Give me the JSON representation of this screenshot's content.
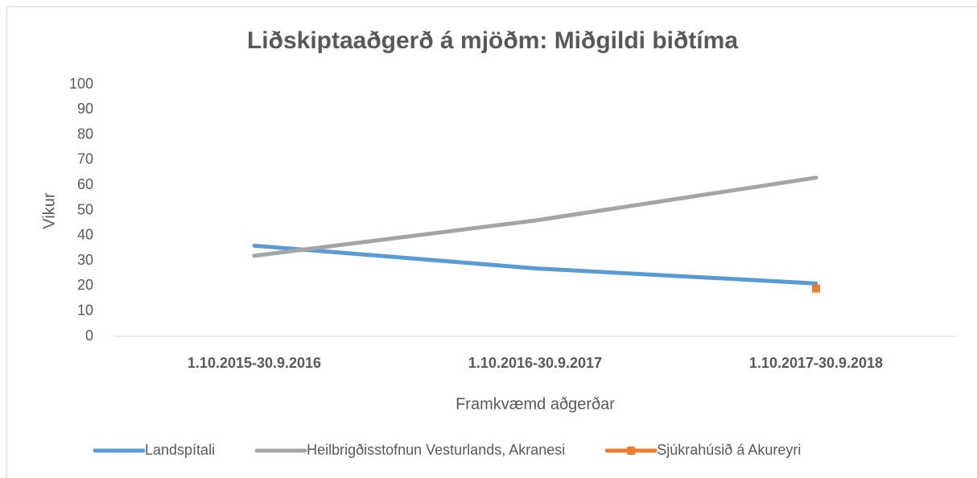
{
  "chart_data": {
    "type": "line",
    "title": "Liðskiptaaðgerð á mjöðm: Miðgildi biðtíma",
    "x_label": "Framkvæmd aðgerðar",
    "y_label": "Vikur",
    "categories": [
      "1.10.2015-30.9.2016",
      "1.10.2016-30.9.2017",
      "1.10.2017-30.9.2018"
    ],
    "series": [
      {
        "name": "Landspítali",
        "color": "#5b9bd5",
        "values": [
          36,
          27,
          21
        ]
      },
      {
        "name": "Heilbrigðisstofnun Vesturlands, Akranesi",
        "color": "#a5a5a5",
        "values": [
          32,
          46,
          63
        ]
      },
      {
        "name": "Sjúkrahúsið á Akureyri",
        "color": "#ed7d31",
        "marker": "square",
        "values": [
          null,
          null,
          19
        ]
      }
    ],
    "ylim": [
      0,
      100
    ],
    "yticks": [
      0,
      10,
      20,
      30,
      40,
      50,
      60,
      70,
      80,
      90,
      100
    ],
    "grid": false,
    "legend": "bottom"
  }
}
